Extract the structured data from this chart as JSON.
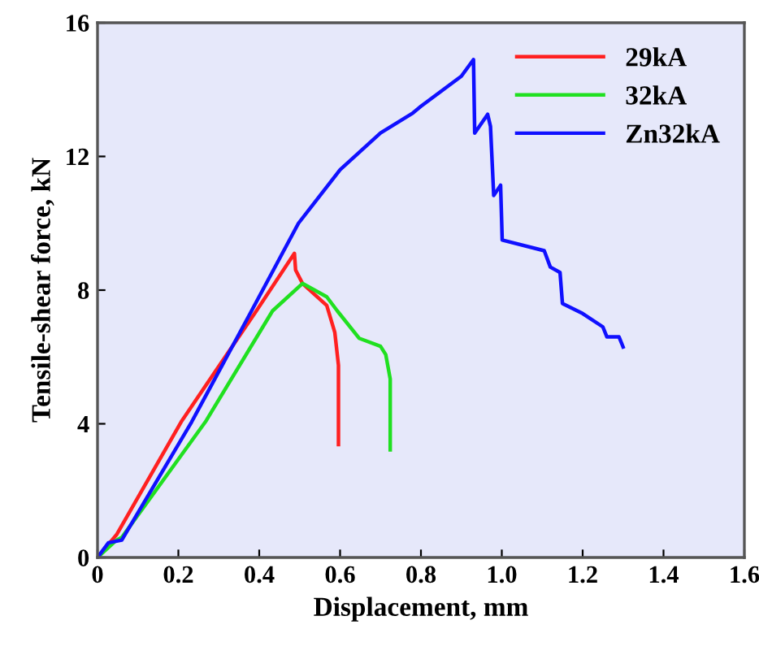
{
  "chart_data": {
    "type": "line",
    "xlabel": "Displacement, mm",
    "ylabel": "Tensile-shear force, kN",
    "xlim": [
      0,
      1.6
    ],
    "xticks": [
      0,
      0.2,
      0.4,
      0.6,
      0.8,
      {
        "value": 1.0,
        "label": "1.0"
      },
      1.2,
      1.4,
      1.6
    ],
    "ylim": [
      0,
      16
    ],
    "yticks": [
      0,
      4,
      8,
      12,
      16
    ],
    "grid": false,
    "legend": "top right",
    "line_style": "solid",
    "marker": "none",
    "series": [
      {
        "name": "29kA",
        "color": "#ff2020",
        "x": [
          0,
          0.047,
          0.207,
          0.393,
          0.487,
          0.49,
          0.507,
          0.567,
          0.587,
          0.596,
          0.596
        ],
        "values": [
          0,
          0.68,
          4.06,
          7.38,
          9.1,
          8.6,
          8.2,
          7.54,
          6.73,
          5.75,
          3.38
        ]
      },
      {
        "name": "32kA",
        "color": "#20e020",
        "x": [
          0,
          0.047,
          0.06,
          0.267,
          0.433,
          0.507,
          0.567,
          0.593,
          0.647,
          0.7,
          0.713,
          0.724,
          0.724
        ],
        "values": [
          0,
          0.52,
          0.6,
          4.06,
          7.38,
          8.2,
          7.8,
          7.38,
          6.56,
          6.32,
          6.07,
          5.34,
          3.22
        ]
      },
      {
        "name": "Zn32kA",
        "color": "#1010ff",
        "x": [
          0,
          0.027,
          0.06,
          0.233,
          0.381,
          0.497,
          0.6,
          0.7,
          0.78,
          0.8,
          0.9,
          0.93,
          0.933,
          0.965,
          0.972,
          0.98,
          0.997,
          1.001,
          1.105,
          1.12,
          1.144,
          1.15,
          1.2,
          1.25,
          1.26,
          1.29,
          1.3
        ],
        "values": [
          0,
          0.44,
          0.52,
          4.06,
          7.38,
          10.0,
          11.6,
          12.7,
          13.3,
          13.5,
          14.4,
          14.9,
          12.7,
          13.26,
          12.9,
          10.83,
          11.14,
          9.5,
          9.18,
          8.69,
          8.53,
          7.6,
          7.3,
          6.9,
          6.6,
          6.6,
          6.3
        ]
      }
    ]
  }
}
